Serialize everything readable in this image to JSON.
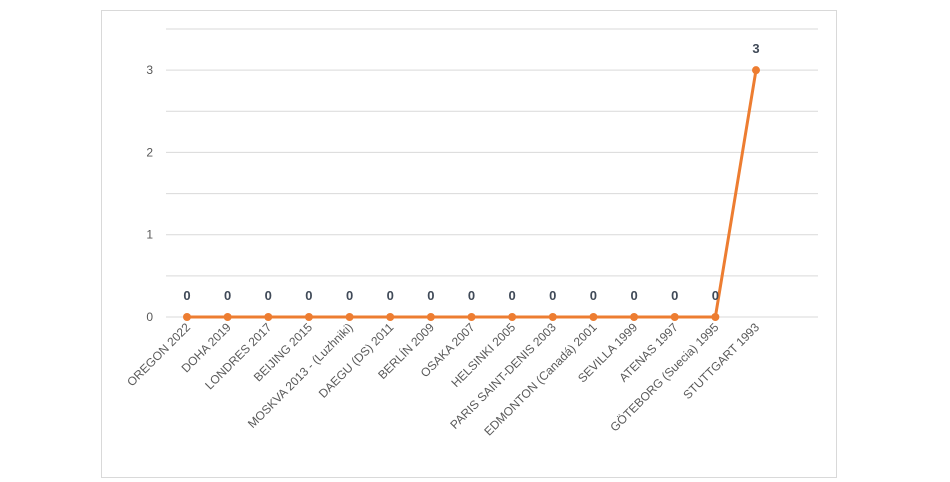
{
  "chart_data": {
    "type": "line",
    "categories": [
      "OREGON 2022",
      "DOHA 2019",
      "LONDRES 2017",
      "BEIJING 2015",
      "MOSKVA 2013 - (Luzhniki)",
      "DAEGU (DS) 2011",
      "BERLÍN 2009",
      "OSAKA 2007",
      "HELSINKI 2005",
      "PARIS SAINT-DENIS 2003",
      "EDMONTON (Canadá) 2001",
      "SEVILLA 1999",
      "ATENAS 1997",
      "GÖTEBORG (Suecia) 1995",
      "STUTTGART 1993"
    ],
    "series": [
      {
        "color": "#ed7d31",
        "values": [
          0,
          0,
          0,
          0,
          0,
          0,
          0,
          0,
          0,
          0,
          0,
          0,
          0,
          0,
          3
        ]
      }
    ],
    "ylim": [
      0,
      3.5
    ],
    "yticks": [
      0,
      1,
      2,
      3
    ],
    "minor_yticks": [
      0.5,
      1.5,
      2.5,
      3.5
    ],
    "grid": true,
    "data_labels": true
  }
}
